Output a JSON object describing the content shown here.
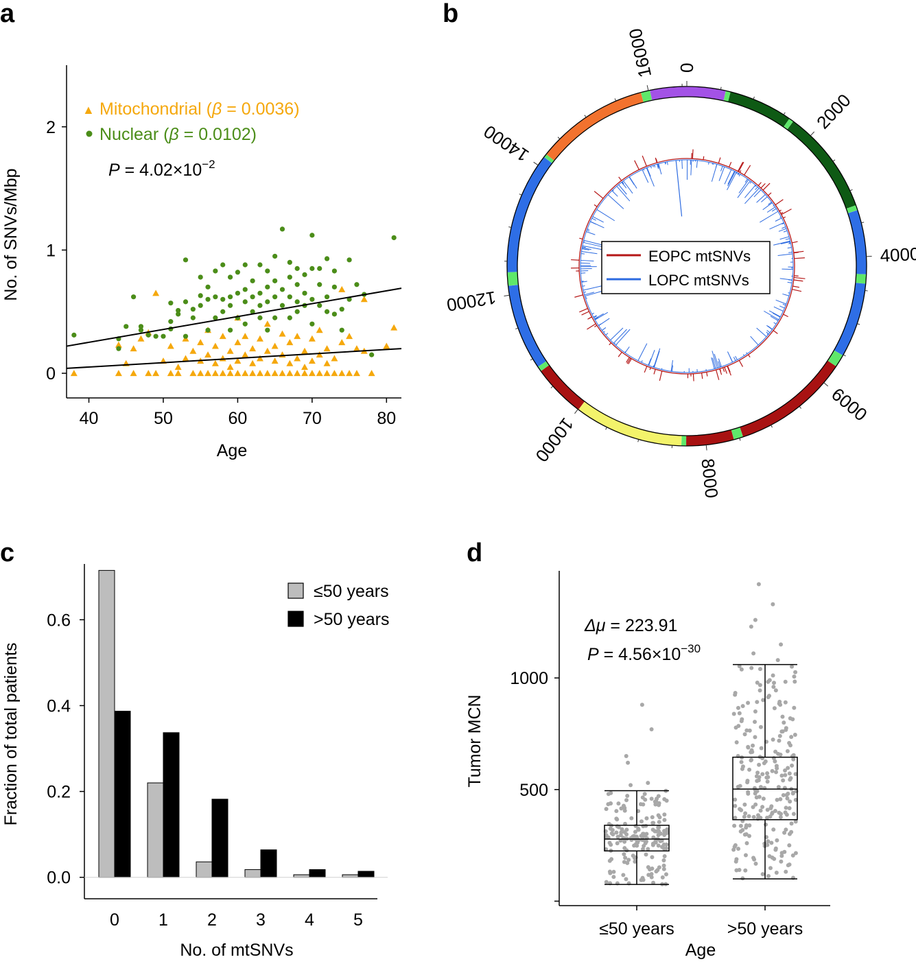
{
  "chart_data": [
    {
      "panel": "a",
      "type": "scatter",
      "xlabel": "Age",
      "ylabel": "No. of SNVs/Mbp",
      "xlim": [
        37,
        82
      ],
      "ylim": [
        -0.2,
        2.5
      ],
      "xticks": [
        40,
        50,
        60,
        70,
        80
      ],
      "yticks": [
        0,
        1,
        2
      ],
      "legend_position": "top-left",
      "colors": {
        "mito": "#f5a80d",
        "nuclear": "#4b8d19"
      },
      "legend": [
        {
          "prefix": "Mitochondrial (",
          "beta": "β",
          "value": " = 0.0036)"
        },
        {
          "prefix": "Nuclear (",
          "beta": "β",
          "value": " = 0.0102)"
        }
      ],
      "pvalue": {
        "p": "P",
        "text": " = 4.02×10",
        "exp": "−2"
      },
      "fit_lines": [
        {
          "series": "Mitochondrial",
          "x": [
            37,
            82
          ],
          "y": [
            0.04,
            0.2
          ]
        },
        {
          "series": "Nuclear",
          "x": [
            37,
            82
          ],
          "y": [
            0.22,
            0.69
          ]
        }
      ],
      "series": [
        {
          "name": "Mitochondrial",
          "marker": "triangle",
          "points": [
            [
              38,
              0.0
            ],
            [
              44,
              0.0
            ],
            [
              44,
              0.23
            ],
            [
              45,
              0.08
            ],
            [
              46,
              0.0
            ],
            [
              46,
              0.2
            ],
            [
              47,
              0.28
            ],
            [
              48,
              0.0
            ],
            [
              48,
              0.33
            ],
            [
              49,
              0.65
            ],
            [
              49,
              0.0
            ],
            [
              50,
              0.1
            ],
            [
              51,
              0.0
            ],
            [
              51,
              0.22
            ],
            [
              52,
              0.0
            ],
            [
              52,
              0.05
            ],
            [
              53,
              0.12
            ],
            [
              53,
              0.28
            ],
            [
              54,
              0.0
            ],
            [
              54,
              0.18
            ],
            [
              55,
              0.0
            ],
            [
              55,
              0.1
            ],
            [
              55,
              0.25
            ],
            [
              56,
              0.0
            ],
            [
              56,
              0.15
            ],
            [
              56,
              0.35
            ],
            [
              57,
              0.0
            ],
            [
              57,
              0.08
            ],
            [
              57,
              0.22
            ],
            [
              58,
              0.0
            ],
            [
              58,
              0.12
            ],
            [
              58,
              0.3
            ],
            [
              59,
              0.0
            ],
            [
              59,
              0.05
            ],
            [
              59,
              0.18
            ],
            [
              60,
              0.0
            ],
            [
              60,
              0.1
            ],
            [
              60,
              0.25
            ],
            [
              60,
              0.45
            ],
            [
              61,
              0.0
            ],
            [
              61,
              0.15
            ],
            [
              61,
              0.3
            ],
            [
              62,
              0.0
            ],
            [
              62,
              0.08
            ],
            [
              62,
              0.2
            ],
            [
              63,
              0.0
            ],
            [
              63,
              0.12
            ],
            [
              63,
              0.28
            ],
            [
              64,
              0.0
            ],
            [
              64,
              0.18
            ],
            [
              64,
              0.4
            ],
            [
              65,
              0.0
            ],
            [
              65,
              0.1
            ],
            [
              65,
              0.22
            ],
            [
              66,
              0.0
            ],
            [
              66,
              0.15
            ],
            [
              66,
              0.32
            ],
            [
              67,
              0.0
            ],
            [
              67,
              0.08
            ],
            [
              67,
              0.25
            ],
            [
              68,
              0.0
            ],
            [
              68,
              0.12
            ],
            [
              68,
              0.3
            ],
            [
              69,
              0.0
            ],
            [
              69,
              0.05
            ],
            [
              69,
              0.18
            ],
            [
              70,
              0.0
            ],
            [
              70,
              0.1
            ],
            [
              70,
              0.28
            ],
            [
              71,
              0.0
            ],
            [
              71,
              0.15
            ],
            [
              71,
              0.35
            ],
            [
              72,
              0.0
            ],
            [
              72,
              0.08
            ],
            [
              72,
              0.2
            ],
            [
              73,
              0.0
            ],
            [
              73,
              0.12
            ],
            [
              74,
              0.0
            ],
            [
              74,
              0.25
            ],
            [
              74,
              0.68
            ],
            [
              75,
              0.0
            ],
            [
              75,
              0.3
            ],
            [
              76,
              0.0
            ],
            [
              76,
              0.2
            ],
            [
              77,
              0.18
            ],
            [
              77,
              0.6
            ],
            [
              78,
              0.0
            ],
            [
              80,
              0.22
            ],
            [
              81,
              0.37
            ]
          ]
        },
        {
          "name": "Nuclear",
          "marker": "circle",
          "points": [
            [
              38,
              0.31
            ],
            [
              44,
              0.2
            ],
            [
              44,
              0.28
            ],
            [
              45,
              0.38
            ],
            [
              46,
              0.62
            ],
            [
              47,
              0.35
            ],
            [
              47,
              0.38
            ],
            [
              48,
              0.31
            ],
            [
              49,
              0.3
            ],
            [
              50,
              0.3
            ],
            [
              51,
              0.36
            ],
            [
              51,
              0.42
            ],
            [
              51,
              0.57
            ],
            [
              52,
              0.48
            ],
            [
              52,
              0.51
            ],
            [
              53,
              0.3
            ],
            [
              53,
              0.58
            ],
            [
              53,
              0.92
            ],
            [
              54,
              0.45
            ],
            [
              54,
              0.52
            ],
            [
              55,
              0.55
            ],
            [
              55,
              0.63
            ],
            [
              55,
              0.78
            ],
            [
              56,
              0.35
            ],
            [
              56,
              0.6
            ],
            [
              56,
              0.7
            ],
            [
              57,
              0.45
            ],
            [
              57,
              0.62
            ],
            [
              57,
              0.83
            ],
            [
              58,
              0.5
            ],
            [
              58,
              0.6
            ],
            [
              58,
              0.88
            ],
            [
              59,
              0.35
            ],
            [
              59,
              0.55
            ],
            [
              59,
              0.62
            ],
            [
              59,
              0.78
            ],
            [
              60,
              0.45
            ],
            [
              60,
              0.65
            ],
            [
              60,
              0.82
            ],
            [
              61,
              0.4
            ],
            [
              61,
              0.58
            ],
            [
              61,
              0.68
            ],
            [
              61,
              0.88
            ],
            [
              62,
              0.5
            ],
            [
              62,
              0.62
            ],
            [
              62,
              0.75
            ],
            [
              63,
              0.45
            ],
            [
              63,
              0.55
            ],
            [
              63,
              0.65
            ],
            [
              63,
              0.88
            ],
            [
              64,
              0.35
            ],
            [
              64,
              0.58
            ],
            [
              64,
              0.7
            ],
            [
              64,
              0.83
            ],
            [
              65,
              0.45
            ],
            [
              65,
              0.62
            ],
            [
              65,
              0.75
            ],
            [
              65,
              0.95
            ],
            [
              66,
              0.55
            ],
            [
              66,
              0.68
            ],
            [
              66,
              1.17
            ],
            [
              67,
              0.45
            ],
            [
              67,
              0.62
            ],
            [
              67,
              0.78
            ],
            [
              67,
              0.9
            ],
            [
              68,
              0.5
            ],
            [
              68,
              0.58
            ],
            [
              68,
              0.72
            ],
            [
              68,
              0.85
            ],
            [
              69,
              0.55
            ],
            [
              69,
              0.65
            ],
            [
              69,
              0.8
            ],
            [
              70,
              0.4
            ],
            [
              70,
              0.6
            ],
            [
              70,
              0.85
            ],
            [
              70,
              1.12
            ],
            [
              71,
              0.55
            ],
            [
              71,
              0.72
            ],
            [
              71,
              0.85
            ],
            [
              72,
              0.5
            ],
            [
              72,
              0.62
            ],
            [
              72,
              0.93
            ],
            [
              73,
              0.48
            ],
            [
              73,
              0.7
            ],
            [
              73,
              0.83
            ],
            [
              74,
              0.35
            ],
            [
              74,
              0.52
            ],
            [
              75,
              0.6
            ],
            [
              75,
              0.92
            ],
            [
              76,
              0.72
            ],
            [
              77,
              0.64
            ],
            [
              78,
              0.15
            ],
            [
              81,
              1.1
            ]
          ]
        }
      ]
    },
    {
      "panel": "b",
      "type": "circos",
      "angle_ticks": [
        "0",
        "2000",
        "4000",
        "6000",
        "8000",
        "10000",
        "12000",
        "14000",
        "16000"
      ],
      "genome_length": 16569,
      "segments": [
        {
          "start": 16024,
          "end": 16569,
          "color": "#a352e6"
        },
        {
          "start": 0,
          "end": 576,
          "color": "#a352e6"
        },
        {
          "start": 577,
          "end": 647,
          "color": "#5fe86a"
        },
        {
          "start": 648,
          "end": 1601,
          "color": "#0e5a14"
        },
        {
          "start": 1602,
          "end": 1670,
          "color": "#5fe86a"
        },
        {
          "start": 1671,
          "end": 3229,
          "color": "#0e5a14"
        },
        {
          "start": 3230,
          "end": 3304,
          "color": "#5fe86a"
        },
        {
          "start": 3305,
          "end": 4262,
          "color": "#2e6ee6"
        },
        {
          "start": 4263,
          "end": 4400,
          "color": "#5fe86a"
        },
        {
          "start": 4401,
          "end": 5511,
          "color": "#2e6ee6"
        },
        {
          "start": 5512,
          "end": 5700,
          "color": "#5fe86a"
        },
        {
          "start": 5701,
          "end": 7445,
          "color": "#a81212"
        },
        {
          "start": 7446,
          "end": 7585,
          "color": "#5fe86a"
        },
        {
          "start": 7586,
          "end": 8294,
          "color": "#a81212"
        },
        {
          "start": 8295,
          "end": 8365,
          "color": "#5fe86a"
        },
        {
          "start": 8366,
          "end": 9990,
          "color": "#f3f36b"
        },
        {
          "start": 9991,
          "end": 10783,
          "color": "#a81212"
        },
        {
          "start": 10784,
          "end": 10860,
          "color": "#5fe86a"
        },
        {
          "start": 10861,
          "end": 12137,
          "color": "#2e6ee6"
        },
        {
          "start": 12138,
          "end": 12337,
          "color": "#5fe86a"
        },
        {
          "start": 12338,
          "end": 14148,
          "color": "#2e6ee6"
        },
        {
          "start": 14149,
          "end": 14200,
          "color": "#5fe86a"
        },
        {
          "start": 14201,
          "end": 15887,
          "color": "#f2722e"
        },
        {
          "start": 15888,
          "end": 16023,
          "color": "#5fe86a"
        }
      ],
      "legend": [
        {
          "label": "EOPC mtSNVs",
          "color": "#b51616"
        },
        {
          "label": "LOPC mtSNVs",
          "color": "#2c6ae0"
        }
      ]
    },
    {
      "panel": "c",
      "type": "bar",
      "xlabel": "No. of mtSNVs",
      "ylabel": "Fraction of total patients",
      "categories": [
        "0",
        "1",
        "2",
        "3",
        "4",
        "5"
      ],
      "ylim": [
        -0.05,
        0.73
      ],
      "yticks": [
        "0.0",
        "0.2",
        "0.4",
        "0.6"
      ],
      "legend_position": "top-right",
      "series": [
        {
          "name": "≤50 years",
          "color": "#bdbdbd",
          "values": [
            0.715,
            0.22,
            0.036,
            0.018,
            0.006,
            0.006
          ]
        },
        {
          "name": ">50 years",
          "color": "#000000",
          "values": [
            0.387,
            0.337,
            0.182,
            0.064,
            0.018,
            0.014
          ]
        }
      ]
    },
    {
      "panel": "d",
      "type": "box",
      "xlabel": "Age",
      "ylabel": "Tumor MCN",
      "categories": [
        "≤50 years",
        ">50 years"
      ],
      "ylim": [
        -20,
        1480
      ],
      "yticks": [
        500,
        1000
      ],
      "delta": {
        "symbol": "Δμ",
        "text": " = 223.91"
      },
      "pvalue": {
        "p": "P",
        "text": " = 4.56×10",
        "exp": "−30"
      },
      "boxes": [
        {
          "min": 75,
          "q1": 225,
          "median": 278,
          "q3": 340,
          "max": 495
        },
        {
          "min": 100,
          "q1": 365,
          "median": 502,
          "q3": 645,
          "max": 1060
        }
      ],
      "outliers": [
        [
          880,
          770,
          650,
          620,
          530,
          520
        ],
        [
          1420,
          1330,
          1260,
          1230,
          1150,
          1110,
          1080,
          1040,
          990,
          960,
          920,
          880,
          850,
          800,
          780,
          760,
          740
        ]
      ],
      "point_color": "#a8a8a8"
    }
  ],
  "panel_labels": {
    "a": "a",
    "b": "b",
    "c": "c",
    "d": "d"
  }
}
